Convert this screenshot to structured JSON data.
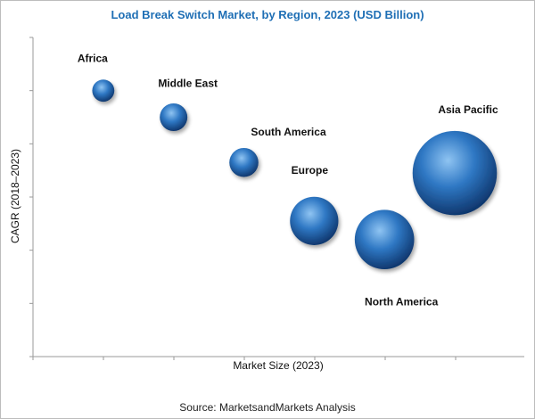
{
  "chart_data": {
    "type": "scatter",
    "title": "Load Break Switch Market, by Region, 2023 (USD Billion)",
    "xlabel": "Market Size (2023)",
    "ylabel": "CAGR (2018–2023)",
    "grid": false,
    "tick_labels_shown": false,
    "x_range": [
      0,
      6
    ],
    "y_range": [
      0,
      6
    ],
    "series": [
      {
        "points": [
          {
            "label": "Africa",
            "x": 1.0,
            "y": 5.0,
            "size": 0.8
          },
          {
            "label": "Middle East",
            "x": 2.0,
            "y": 4.5,
            "size": 1.0
          },
          {
            "label": "South America",
            "x": 3.0,
            "y": 3.65,
            "size": 1.05
          },
          {
            "label": "Europe",
            "x": 4.0,
            "y": 2.55,
            "size": 1.75
          },
          {
            "label": "North America",
            "x": 5.0,
            "y": 2.2,
            "size": 2.15
          },
          {
            "label": "Asia Pacific",
            "x": 6.0,
            "y": 3.45,
            "size": 3.05
          }
        ]
      }
    ],
    "colors": {
      "bubble_light": "#8fc4f2",
      "bubble_mid": "#2f78c4",
      "bubble_dark": "#0b2f63"
    }
  },
  "source": "Source: MarketsandMarkets Analysis"
}
